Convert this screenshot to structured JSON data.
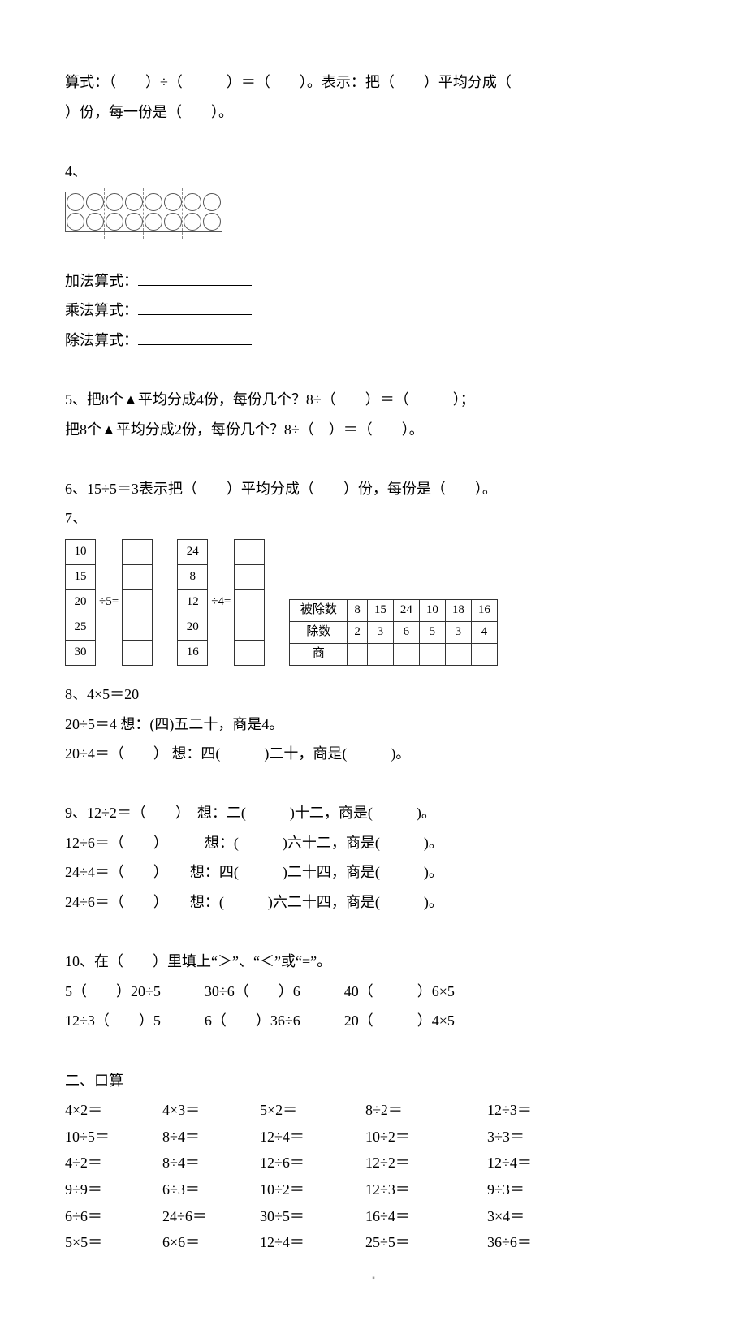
{
  "q3": {
    "line1": "算式：（　　）÷（　　　）＝（　　）。表示：把（　　）平均分成（",
    "line2": "）份，每一份是（　　）。"
  },
  "q4": {
    "label": "4、",
    "add_label": "加法算式：",
    "mul_label": "乘法算式：",
    "div_label": "除法算式：",
    "circles": {
      "rows": 2,
      "groups": 4,
      "per_group": 2
    }
  },
  "q5": {
    "line1": "5、把8个▲平均分成4份，每份几个？8÷（　　）＝（　　　）；",
    "line2": "把8个▲平均分成2份，每份几个？8÷（　）＝（　　）。"
  },
  "q6": {
    "line": "6、15÷5＝3表示把（　　）平均分成（　　）份，每份是（　　）。"
  },
  "q7": {
    "label": "7、",
    "left": {
      "op": "÷5=",
      "vals": [
        "10",
        "15",
        "20",
        "25",
        "30"
      ]
    },
    "mid": {
      "op": "÷4=",
      "vals": [
        "24",
        "8",
        "12",
        "20",
        "16"
      ]
    },
    "table": {
      "row_labels": [
        "被除数",
        "除数",
        "商"
      ],
      "dividend": [
        "8",
        "15",
        "24",
        "10",
        "18",
        "16"
      ],
      "divisor": [
        "2",
        "3",
        "6",
        "5",
        "3",
        "4"
      ]
    }
  },
  "q8": {
    "l1": "8、4×5＝20",
    "l2": "20÷5＝4  想：(四)五二十，商是4。",
    "l3": "20÷4＝（　　）  想：四(　　　)二十，商是(　　　)。"
  },
  "q9": {
    "l1": "9、12÷2＝（　　）　想：二(　　　)十二，商是(　　　)。",
    "l2": "12÷6＝（　　）　　　想：(　　　)六十二，商是(　　　)。",
    "l3": "24÷4＝（　　）　　想：四(　　　)二十四，商是(　　　)。",
    "l4": "24÷6＝（　　）　　想：(　　　)六二十四，商是(　　　)。"
  },
  "q10": {
    "l1": "10、在（　　）里填上“＞”、“＜”或“=”。",
    "l2": "5（　　）20÷5　　　30÷6（　　）6　　　40（　　　）6×5",
    "l3": "12÷3（　　）5　　　6（　　）36÷6　　　20（　　　）4×5"
  },
  "sec2": {
    "title": "二、口算",
    "rows": [
      [
        "4×2＝",
        "4×3＝",
        "5×2＝",
        "8÷2＝",
        "12÷3＝"
      ],
      [
        "10÷5＝",
        "8÷4＝",
        "12÷4＝",
        "10÷2＝",
        "3÷3＝"
      ],
      [
        "4÷2＝",
        "8÷4＝",
        "12÷6＝",
        "12÷2＝",
        "12÷4＝"
      ],
      [
        "9÷9＝",
        "6÷3＝",
        "10÷2＝",
        "12÷3＝",
        "9÷3＝"
      ],
      [
        "6÷6＝",
        "24÷6＝",
        "30÷5＝",
        "16÷4＝",
        "3×4＝"
      ],
      [
        "5×5＝",
        "6×6＝",
        "12÷4＝",
        "25÷5＝",
        "36÷6＝"
      ]
    ]
  }
}
